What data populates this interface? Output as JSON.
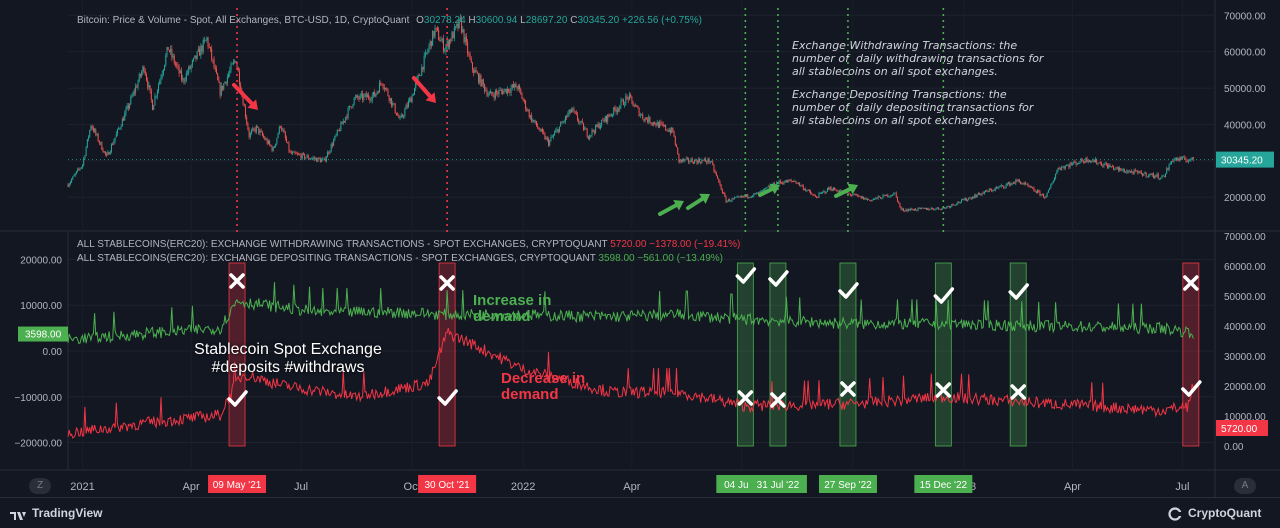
{
  "chart_data": [
    {
      "type": "candlestick",
      "title": "Bitcoin: Price & Volume - Spot, All Exchanges, BTC-USD, 1D, CryptoQuant",
      "ohlc": {
        "open": "30278.24",
        "high": "30600.94",
        "low": "28697.20",
        "close": "30345.20",
        "change": "+226.56 (+0.75%)"
      },
      "last_price_label": "30345.20",
      "y_ticks": [
        "70000.00",
        "60000.00",
        "50000.00",
        "40000.00",
        "30000.00",
        "20000.00"
      ],
      "ylim": [
        11000,
        72000
      ],
      "price_path": [
        [
          "2020-12-20",
          23500
        ],
        [
          "2021-01-01",
          29000
        ],
        [
          "2021-01-08",
          40000
        ],
        [
          "2021-01-21",
          31000
        ],
        [
          "2021-02-08",
          45000
        ],
        [
          "2021-02-21",
          56000
        ],
        [
          "2021-02-28",
          45000
        ],
        [
          "2021-03-13",
          61000
        ],
        [
          "2021-03-25",
          52000
        ],
        [
          "2021-04-14",
          63500
        ],
        [
          "2021-04-25",
          49000
        ],
        [
          "2021-05-08",
          58000
        ],
        [
          "2021-05-19",
          37000
        ],
        [
          "2021-05-25",
          39000
        ],
        [
          "2021-06-08",
          33000
        ],
        [
          "2021-06-14",
          40000
        ],
        [
          "2021-06-22",
          32000
        ],
        [
          "2021-07-20",
          30000
        ],
        [
          "2021-08-14",
          47000
        ],
        [
          "2021-08-31",
          48000
        ],
        [
          "2021-09-06",
          52000
        ],
        [
          "2021-09-21",
          41000
        ],
        [
          "2021-10-01",
          48000
        ],
        [
          "2021-10-20",
          66000
        ],
        [
          "2021-10-28",
          61000
        ],
        [
          "2021-11-10",
          68000
        ],
        [
          "2021-11-19",
          56000
        ],
        [
          "2021-12-04",
          48000
        ],
        [
          "2021-12-27",
          50500
        ],
        [
          "2022-01-07",
          42000
        ],
        [
          "2022-01-22",
          35000
        ],
        [
          "2022-02-10",
          44000
        ],
        [
          "2022-02-24",
          37000
        ],
        [
          "2022-03-29",
          47500
        ],
        [
          "2022-04-10",
          42000
        ],
        [
          "2022-05-05",
          38000
        ],
        [
          "2022-05-10",
          30000
        ],
        [
          "2022-06-05",
          30000
        ],
        [
          "2022-06-18",
          19000
        ],
        [
          "2022-07-15",
          21000
        ],
        [
          "2022-07-30",
          24000
        ],
        [
          "2022-08-14",
          24500
        ],
        [
          "2022-08-31",
          20000
        ],
        [
          "2022-09-12",
          22500
        ],
        [
          "2022-10-15",
          19200
        ],
        [
          "2022-11-05",
          21000
        ],
        [
          "2022-11-10",
          16500
        ],
        [
          "2022-12-15",
          17000
        ],
        [
          "2023-01-15",
          21000
        ],
        [
          "2023-02-15",
          24500
        ],
        [
          "2023-03-10",
          20000
        ],
        [
          "2023-03-20",
          28000
        ],
        [
          "2023-04-14",
          30500
        ],
        [
          "2023-05-10",
          27500
        ],
        [
          "2023-06-15",
          25500
        ],
        [
          "2023-06-23",
          30500
        ],
        [
          "2023-07-10",
          30300
        ]
      ]
    },
    {
      "type": "line",
      "series": [
        {
          "name": "ALL STABLECOINS(ERC20): EXCHANGE WITHDRAWING TRANSACTIONS - SPOT EXCHANGES, CRYPTOQUANT",
          "last": "5720.00",
          "change": "−1378.00 (−19.41%)",
          "color": "#f23645",
          "path": [
            [
              "2020-12-20",
              -18000
            ],
            [
              "2021-03-01",
              -15500
            ],
            [
              "2021-04-25",
              -14000
            ],
            [
              "2021-05-09",
              -6500
            ],
            [
              "2021-05-15",
              -5000
            ],
            [
              "2021-06-15",
              -7500
            ],
            [
              "2021-08-15",
              -10000
            ],
            [
              "2021-10-15",
              -7000
            ],
            [
              "2021-10-30",
              4000
            ],
            [
              "2021-11-20",
              1500
            ],
            [
              "2022-01-01",
              -4000
            ],
            [
              "2022-03-15",
              -9000
            ],
            [
              "2022-05-10",
              -9000
            ],
            [
              "2022-07-04",
              -12000
            ],
            [
              "2022-10-01",
              -11500
            ],
            [
              "2022-12-15",
              -10000
            ],
            [
              "2023-03-15",
              -11500
            ],
            [
              "2023-06-15",
              -13000
            ],
            [
              "2023-07-06",
              -12000
            ],
            [
              "2023-07-10",
              -7000
            ]
          ]
        },
        {
          "name": "ALL STABLECOINS(ERC20): EXCHANGE DEPOSITING TRANSACTIONS - SPOT EXCHANGES, CRYPTOQUANT",
          "last": "3598.00",
          "change": "−561.00 (−13.49%)",
          "color": "#4caf50",
          "path": [
            [
              "2020-12-20",
              2500
            ],
            [
              "2021-03-01",
              4000
            ],
            [
              "2021-04-25",
              5000
            ],
            [
              "2021-05-09",
              11000
            ],
            [
              "2021-05-20",
              10500
            ],
            [
              "2021-07-15",
              8500
            ],
            [
              "2021-09-15",
              8500
            ],
            [
              "2021-10-30",
              8000
            ],
            [
              "2021-12-15",
              8000
            ],
            [
              "2022-03-15",
              7500
            ],
            [
              "2022-05-10",
              8000
            ],
            [
              "2022-07-01",
              7000
            ],
            [
              "2022-09-27",
              6000
            ],
            [
              "2022-12-15",
              6000
            ],
            [
              "2023-03-01",
              5500
            ],
            [
              "2023-06-15",
              5000
            ],
            [
              "2023-07-10",
              4000
            ]
          ]
        }
      ],
      "y_ticks_left": [
        "20000.00",
        "10000.00",
        "0.00",
        "−10000.00",
        "−20000.00"
      ],
      "y_ticks_right": [
        "70000.00",
        "60000.00",
        "50000.00",
        "40000.00",
        "30000.00",
        "20000.00",
        "10000.00",
        "0.00"
      ],
      "ylim": [
        -26000,
        26000
      ],
      "x_ticks": [
        {
          "date": "2021-01-01",
          "label": "2021"
        },
        {
          "date": "2021-04-01",
          "label": "Apr"
        },
        {
          "date": "2021-07-01",
          "label": "Jul"
        },
        {
          "date": "2021-10-01",
          "label": "Oct"
        },
        {
          "date": "2022-01-01",
          "label": "2022"
        },
        {
          "date": "2022-04-01",
          "label": "Apr"
        },
        {
          "date": "2022-07-01",
          "label": "Jul"
        },
        {
          "date": "2022-10-01",
          "label": "Oct"
        },
        {
          "date": "2023-01-01",
          "label": "2023"
        },
        {
          "date": "2023-04-01",
          "label": "Apr"
        },
        {
          "date": "2023-07-01",
          "label": "Jul"
        }
      ]
    }
  ],
  "annotations": {
    "notes": [
      "Exchange Withdrawing Transactions: the\nnumber of  daily withdrawing transactions for\nall stablecoins on all spot exchanges.",
      "Exchange Depositing Transactions: the\nnumber of  daily depositing transactions for\nall stablecoins on all spot exchanges."
    ],
    "title_overlay": "Stablecoin Spot Exchange\n#deposits #withdraws",
    "increase_label": "Increase in\ndemand",
    "decrease_label": "Decrease in\ndemand",
    "red_vlines": [
      "2021-05-09",
      "2021-10-30"
    ],
    "green_vlines": [
      "2022-07-04",
      "2022-07-31",
      "2022-09-27",
      "2022-12-15"
    ],
    "date_tags": [
      {
        "date": "2021-05-09",
        "label": "09 May '21",
        "color": "#f23645"
      },
      {
        "date": "2021-10-30",
        "label": "30 Oct '21",
        "color": "#f23645"
      },
      {
        "date": "2022-07-04",
        "label": "04 Jul '22",
        "color": "#4caf50"
      },
      {
        "date": "2022-07-31",
        "label": "31 Jul '22",
        "color": "#4caf50"
      },
      {
        "date": "2022-09-27",
        "label": "27 Sep '22",
        "color": "#4caf50"
      },
      {
        "date": "2022-12-15",
        "label": "15 Dec '22",
        "color": "#4caf50"
      }
    ],
    "boxes": [
      {
        "date": "2021-05-09",
        "color": "red"
      },
      {
        "date": "2021-10-30",
        "color": "red"
      },
      {
        "date": "2022-07-04",
        "color": "green"
      },
      {
        "date": "2022-07-31",
        "color": "green"
      },
      {
        "date": "2022-09-27",
        "color": "green"
      },
      {
        "date": "2022-12-15",
        "color": "green"
      },
      {
        "date": "2023-02-15",
        "color": "green"
      },
      {
        "date": "2023-07-08",
        "color": "red"
      }
    ]
  },
  "footer": {
    "left_brand": "TradingView",
    "right_brand": "CryptoQuant",
    "scale_left": "Z",
    "scale_right": "A"
  },
  "colors": {
    "background": "#131722",
    "up": "#26a69a",
    "down": "#ef5350",
    "deposit": "#4caf50",
    "withdraw": "#f23645",
    "note": "#d1d4dc"
  }
}
